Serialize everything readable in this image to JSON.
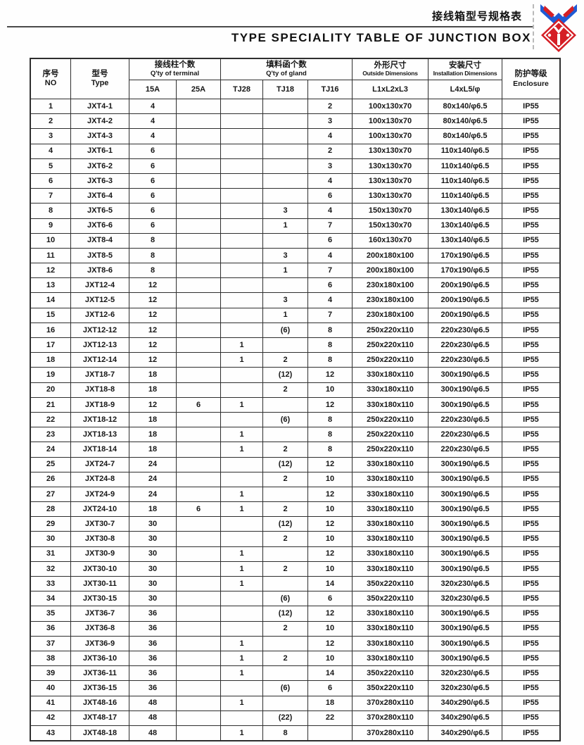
{
  "page": {
    "title_cn": "接线箱型号规格表",
    "title_en": "TYPE SPECIALITY TABLE OF JUNCTION BOX"
  },
  "logo": {
    "name": "junction-box-brand-logo",
    "diamond_color": "#d51f26",
    "ribbon_color": "#1f5bd5",
    "inner_color": "#ffffff"
  },
  "table": {
    "header": {
      "no_cn": "序号",
      "no_en": "NO",
      "type_cn": "型号",
      "type_en": "Type",
      "terminal_cn": "接线柱个数",
      "terminal_en": "Q'ty of terminal",
      "terminal_cols": {
        "c15": "15A",
        "c25": "25A"
      },
      "gland_cn": "填料函个数",
      "gland_en": "Q'ty of gland",
      "gland_cols": {
        "tj28": "TJ28",
        "tj18": "TJ18",
        "tj16": "TJ16"
      },
      "outside_cn": "外形尺寸",
      "outside_en": "Outside Dimensions",
      "outside_sub": "L1xL2xL3",
      "install_cn": "安装尺寸",
      "install_en": "Installation Dimensions",
      "install_sub": "L4xL5/φ",
      "enclosure_cn": "防护等级",
      "enclosure_en": "Enclosure"
    },
    "column_keys": [
      "no",
      "type",
      "terminal-15a",
      "terminal-25a",
      "gland-tj28",
      "gland-tj18",
      "gland-tj16",
      "outside-dimensions",
      "installation-dimensions",
      "enclosure"
    ],
    "rows": [
      [
        "1",
        "JXT4-1",
        "4",
        "",
        "",
        "",
        "2",
        "100x130x70",
        "80x140/φ6.5",
        "IP55"
      ],
      [
        "2",
        "JXT4-2",
        "4",
        "",
        "",
        "",
        "3",
        "100x130x70",
        "80x140/φ6.5",
        "IP55"
      ],
      [
        "3",
        "JXT4-3",
        "4",
        "",
        "",
        "",
        "4",
        "100x130x70",
        "80x140/φ6.5",
        "IP55"
      ],
      [
        "4",
        "JXT6-1",
        "6",
        "",
        "",
        "",
        "2",
        "130x130x70",
        "110x140/φ6.5",
        "IP55"
      ],
      [
        "5",
        "JXT6-2",
        "6",
        "",
        "",
        "",
        "3",
        "130x130x70",
        "110x140/φ6.5",
        "IP55"
      ],
      [
        "6",
        "JXT6-3",
        "6",
        "",
        "",
        "",
        "4",
        "130x130x70",
        "110x140/φ6.5",
        "IP55"
      ],
      [
        "7",
        "JXT6-4",
        "6",
        "",
        "",
        "",
        "6",
        "130x130x70",
        "110x140/φ6.5",
        "IP55"
      ],
      [
        "8",
        "JXT6-5",
        "6",
        "",
        "",
        "3",
        "4",
        "150x130x70",
        "130x140/φ6.5",
        "IP55"
      ],
      [
        "9",
        "JXT6-6",
        "6",
        "",
        "",
        "1",
        "7",
        "150x130x70",
        "130x140/φ6.5",
        "IP55"
      ],
      [
        "10",
        "JXT8-4",
        "8",
        "",
        "",
        "",
        "6",
        "160x130x70",
        "130x140/φ6.5",
        "IP55"
      ],
      [
        "11",
        "JXT8-5",
        "8",
        "",
        "",
        "3",
        "4",
        "200x180x100",
        "170x190/φ6.5",
        "IP55"
      ],
      [
        "12",
        "JXT8-6",
        "8",
        "",
        "",
        "1",
        "7",
        "200x180x100",
        "170x190/φ6.5",
        "IP55"
      ],
      [
        "13",
        "JXT12-4",
        "12",
        "",
        "",
        "",
        "6",
        "230x180x100",
        "200x190/φ6.5",
        "IP55"
      ],
      [
        "14",
        "JXT12-5",
        "12",
        "",
        "",
        "3",
        "4",
        "230x180x100",
        "200x190/φ6.5",
        "IP55"
      ],
      [
        "15",
        "JXT12-6",
        "12",
        "",
        "",
        "1",
        "7",
        "230x180x100",
        "200x190/φ6.5",
        "IP55"
      ],
      [
        "16",
        "JXT12-12",
        "12",
        "",
        "",
        "(6)",
        "8",
        "250x220x110",
        "220x230/φ6.5",
        "IP55"
      ],
      [
        "17",
        "JXT12-13",
        "12",
        "",
        "1",
        "",
        "8",
        "250x220x110",
        "220x230/φ6.5",
        "IP55"
      ],
      [
        "18",
        "JXT12-14",
        "12",
        "",
        "1",
        "2",
        "8",
        "250x220x110",
        "220x230/φ6.5",
        "IP55"
      ],
      [
        "19",
        "JXT18-7",
        "18",
        "",
        "",
        "(12)",
        "12",
        "330x180x110",
        "300x190/φ6.5",
        "IP55"
      ],
      [
        "20",
        "JXT18-8",
        "18",
        "",
        "",
        "2",
        "10",
        "330x180x110",
        "300x190/φ6.5",
        "IP55"
      ],
      [
        "21",
        "JXT18-9",
        "12",
        "6",
        "1",
        "",
        "12",
        "330x180x110",
        "300x190/φ6.5",
        "IP55"
      ],
      [
        "22",
        "JXT18-12",
        "18",
        "",
        "",
        "(6)",
        "8",
        "250x220x110",
        "220x230/φ6.5",
        "IP55"
      ],
      [
        "23",
        "JXT18-13",
        "18",
        "",
        "1",
        "",
        "8",
        "250x220x110",
        "220x230/φ6.5",
        "IP55"
      ],
      [
        "24",
        "JXT18-14",
        "18",
        "",
        "1",
        "2",
        "8",
        "250x220x110",
        "220x230/φ6.5",
        "IP55"
      ],
      [
        "25",
        "JXT24-7",
        "24",
        "",
        "",
        "(12)",
        "12",
        "330x180x110",
        "300x190/φ6.5",
        "IP55"
      ],
      [
        "26",
        "JXT24-8",
        "24",
        "",
        "",
        "2",
        "10",
        "330x180x110",
        "300x190/φ6.5",
        "IP55"
      ],
      [
        "27",
        "JXT24-9",
        "24",
        "",
        "1",
        "",
        "12",
        "330x180x110",
        "300x190/φ6.5",
        "IP55"
      ],
      [
        "28",
        "JXT24-10",
        "18",
        "6",
        "1",
        "2",
        "10",
        "330x180x110",
        "300x190/φ6.5",
        "IP55"
      ],
      [
        "29",
        "JXT30-7",
        "30",
        "",
        "",
        "(12)",
        "12",
        "330x180x110",
        "300x190/φ6.5",
        "IP55"
      ],
      [
        "30",
        "JXT30-8",
        "30",
        "",
        "",
        "2",
        "10",
        "330x180x110",
        "300x190/φ6.5",
        "IP55"
      ],
      [
        "31",
        "JXT30-9",
        "30",
        "",
        "1",
        "",
        "12",
        "330x180x110",
        "300x190/φ6.5",
        "IP55"
      ],
      [
        "32",
        "JXT30-10",
        "30",
        "",
        "1",
        "2",
        "10",
        "330x180x110",
        "300x190/φ6.5",
        "IP55"
      ],
      [
        "33",
        "JXT30-11",
        "30",
        "",
        "1",
        "",
        "14",
        "350x220x110",
        "320x230/φ6.5",
        "IP55"
      ],
      [
        "34",
        "JXT30-15",
        "30",
        "",
        "",
        "(6)",
        "6",
        "350x220x110",
        "320x230/φ6.5",
        "IP55"
      ],
      [
        "35",
        "JXT36-7",
        "36",
        "",
        "",
        "(12)",
        "12",
        "330x180x110",
        "300x190/φ6.5",
        "IP55"
      ],
      [
        "36",
        "JXT36-8",
        "36",
        "",
        "",
        "2",
        "10",
        "330x180x110",
        "300x190/φ6.5",
        "IP55"
      ],
      [
        "37",
        "JXT36-9",
        "36",
        "",
        "1",
        "",
        "12",
        "330x180x110",
        "300x190/φ6.5",
        "IP55"
      ],
      [
        "38",
        "JXT36-10",
        "36",
        "",
        "1",
        "2",
        "10",
        "330x180x110",
        "300x190/φ6.5",
        "IP55"
      ],
      [
        "39",
        "JXT36-11",
        "36",
        "",
        "1",
        "",
        "14",
        "350x220x110",
        "320x230/φ6.5",
        "IP55"
      ],
      [
        "40",
        "JXT36-15",
        "36",
        "",
        "",
        "(6)",
        "6",
        "350x220x110",
        "320x230/φ6.5",
        "IP55"
      ],
      [
        "41",
        "JXT48-16",
        "48",
        "",
        "1",
        "",
        "18",
        "370x280x110",
        "340x290/φ6.5",
        "IP55"
      ],
      [
        "42",
        "JXT48-17",
        "48",
        "",
        "",
        "(22)",
        "22",
        "370x280x110",
        "340x290/φ6.5",
        "IP55"
      ],
      [
        "43",
        "JXT48-18",
        "48",
        "",
        "1",
        "8",
        "",
        "370x280x110",
        "340x290/φ6.5",
        "IP55"
      ]
    ]
  }
}
